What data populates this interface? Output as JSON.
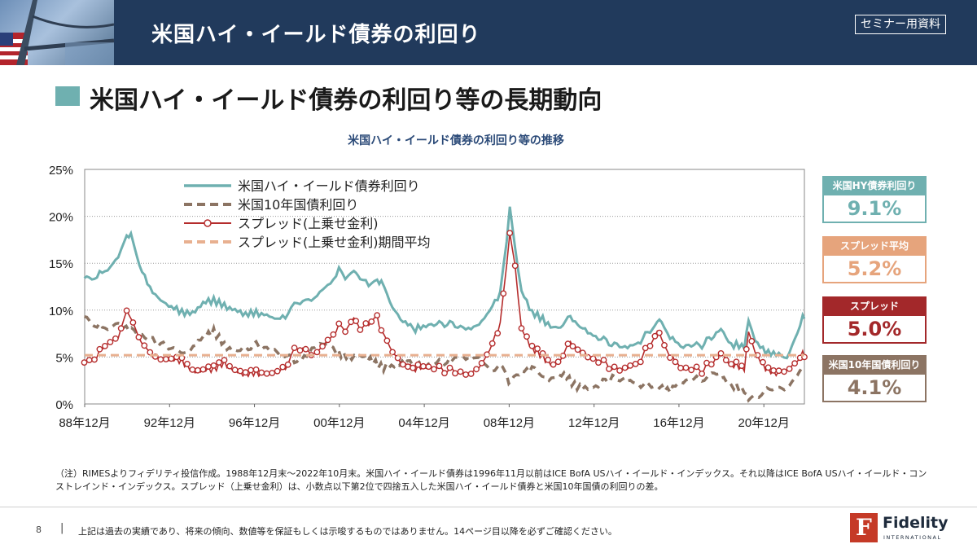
{
  "header": {
    "title": "米国ハイ・イールド債券の利回り",
    "badge": "セミナー用資料"
  },
  "section": {
    "title": "米国ハイ・イールド債券の利回り等の長期動向"
  },
  "chart_data": {
    "type": "line",
    "title": "米国ハイ・イールド債券の利回り等の推移",
    "x_range": [
      "1988-12",
      "2022-10"
    ],
    "x_tick_labels": [
      "88年12月",
      "92年12月",
      "96年12月",
      "00年12月",
      "04年12月",
      "08年12月",
      "12年12月",
      "16年12月",
      "20年12月"
    ],
    "x_tick_years": [
      1988.92,
      1992.92,
      1996.92,
      2000.92,
      2004.92,
      2008.92,
      2012.92,
      2016.92,
      2020.92
    ],
    "y_tick_labels": [
      "0%",
      "5%",
      "10%",
      "15%",
      "20%",
      "25%"
    ],
    "ylim": [
      0,
      25
    ],
    "grid": "horizontal dotted",
    "legend_placement": "top-left",
    "series": [
      {
        "name": "米国ハイ・イールド債券利回り",
        "color": "#6fb0b0",
        "style": "solid",
        "x": [
          1988.9,
          1989.5,
          1990.0,
          1990.5,
          1990.9,
          1991.1,
          1991.5,
          1992.0,
          1992.5,
          1993.0,
          1993.5,
          1994.0,
          1994.5,
          1995.0,
          1995.5,
          1996.0,
          1996.5,
          1997.0,
          1997.5,
          1998.0,
          1998.5,
          1998.8,
          1999.2,
          1999.6,
          2000.0,
          2000.5,
          2000.9,
          2001.2,
          2001.6,
          2001.9,
          2002.3,
          2002.7,
          2002.9,
          2003.3,
          2003.8,
          2004.5,
          2005.0,
          2006.0,
          2007.0,
          2007.5,
          2008.0,
          2008.5,
          2008.8,
          2008.95,
          2009.2,
          2009.5,
          2010.0,
          2010.5,
          2011.0,
          2011.8,
          2012.5,
          2013.0,
          2014.0,
          2014.5,
          2015.0,
          2015.9,
          2016.1,
          2016.5,
          2017.0,
          2018.0,
          2018.9,
          2019.5,
          2020.0,
          2020.2,
          2020.5,
          2021.0,
          2021.5,
          2022.0,
          2022.5,
          2022.75,
          2022.83
        ],
        "y": [
          13.3,
          13.8,
          14.3,
          15.6,
          17.9,
          17.9,
          14.8,
          12.3,
          11.0,
          10.4,
          9.8,
          9.6,
          10.8,
          11.1,
          10.4,
          10.0,
          9.6,
          9.7,
          9.4,
          9.1,
          9.4,
          11.0,
          10.6,
          11.0,
          12.0,
          12.8,
          14.2,
          13.2,
          14.0,
          13.2,
          12.8,
          13.2,
          12.8,
          10.8,
          9.0,
          8.0,
          8.4,
          8.6,
          8.0,
          8.4,
          10.0,
          11.8,
          17.0,
          21.0,
          16.6,
          12.0,
          9.8,
          9.0,
          8.0,
          9.2,
          7.8,
          7.2,
          6.2,
          6.0,
          6.6,
          8.5,
          8.8,
          7.2,
          6.2,
          6.3,
          7.9,
          6.3,
          6.2,
          9.2,
          6.8,
          5.5,
          5.4,
          4.9,
          7.5,
          9.4,
          9.1
        ]
      },
      {
        "name": "米国10年国債利回り",
        "color": "#8c7463",
        "style": "dashed",
        "x": [
          1988.9,
          1989.5,
          1990.0,
          1990.5,
          1991.0,
          1992.0,
          1993.0,
          1993.8,
          1994.5,
          1995.0,
          1995.5,
          1996.0,
          1997.0,
          1998.0,
          1998.8,
          1999.5,
          2000.0,
          2000.5,
          2001.0,
          2001.5,
          2002.0,
          2002.5,
          2003.0,
          2003.5,
          2004.0,
          2005.0,
          2006.0,
          2006.5,
          2007.0,
          2007.5,
          2008.0,
          2008.6,
          2008.9,
          2009.5,
          2010.0,
          2010.8,
          2011.5,
          2012.0,
          2012.5,
          2013.0,
          2013.9,
          2014.5,
          2015.0,
          2016.0,
          2016.5,
          2017.0,
          2018.0,
          2018.8,
          2019.5,
          2020.0,
          2020.2,
          2020.8,
          2021.2,
          2022.0,
          2022.5,
          2022.83
        ],
        "y": [
          9.2,
          8.5,
          8.0,
          8.6,
          8.0,
          6.9,
          5.9,
          5.3,
          7.1,
          7.8,
          6.2,
          5.6,
          6.3,
          5.5,
          4.6,
          5.6,
          6.5,
          6.2,
          5.2,
          5.0,
          5.1,
          4.5,
          3.9,
          4.1,
          4.4,
          4.2,
          4.6,
          5.1,
          4.8,
          4.9,
          3.8,
          4.0,
          2.5,
          3.4,
          3.8,
          2.5,
          3.2,
          2.0,
          1.6,
          1.9,
          3.0,
          2.5,
          2.2,
          1.8,
          1.5,
          2.4,
          2.8,
          3.2,
          1.9,
          1.5,
          0.7,
          0.9,
          1.7,
          1.7,
          3.0,
          4.1
        ]
      },
      {
        "name": "スプレッド(上乗せ金利)",
        "color": "#b52c2c",
        "style": "solid-markers",
        "x": [
          1988.9,
          1989.5,
          1990.0,
          1990.5,
          1990.9,
          1991.2,
          1991.6,
          1992.0,
          1992.5,
          1993.0,
          1993.5,
          1994.0,
          1994.5,
          1995.0,
          1995.5,
          1996.0,
          1996.5,
          1997.0,
          1997.5,
          1998.0,
          1998.5,
          1998.8,
          1999.2,
          1999.6,
          2000.0,
          2000.5,
          2000.9,
          2001.2,
          2001.6,
          2001.9,
          2002.3,
          2002.7,
          2002.9,
          2003.3,
          2003.8,
          2004.5,
          2005.0,
          2006.0,
          2007.0,
          2007.5,
          2008.0,
          2008.5,
          2008.8,
          2008.95,
          2009.2,
          2009.5,
          2010.0,
          2010.5,
          2011.0,
          2011.8,
          2012.5,
          2013.0,
          2014.0,
          2014.5,
          2015.0,
          2015.9,
          2016.1,
          2016.5,
          2017.0,
          2018.0,
          2018.9,
          2019.5,
          2020.0,
          2020.2,
          2020.5,
          2021.0,
          2021.5,
          2022.0,
          2022.5,
          2022.75,
          2022.83
        ],
        "y": [
          4.3,
          5.3,
          6.5,
          7.0,
          9.9,
          9.0,
          6.3,
          5.3,
          4.7,
          4.8,
          4.6,
          3.4,
          3.6,
          3.8,
          4.3,
          3.5,
          3.2,
          3.3,
          3.1,
          3.5,
          4.0,
          6.2,
          5.6,
          5.2,
          5.9,
          7.0,
          8.2,
          7.6,
          9.0,
          7.8,
          8.6,
          9.4,
          7.5,
          6.0,
          4.4,
          3.8,
          4.0,
          3.6,
          3.2,
          3.8,
          5.8,
          8.5,
          14.5,
          18.2,
          14.7,
          8.0,
          6.0,
          5.0,
          4.0,
          6.5,
          5.2,
          4.8,
          3.6,
          3.8,
          4.5,
          7.5,
          7.0,
          5.2,
          3.9,
          3.6,
          5.3,
          4.2,
          3.8,
          8.0,
          5.6,
          3.7,
          3.3,
          3.6,
          4.5,
          5.6,
          5.0
        ]
      },
      {
        "name": "スプレッド(上乗せ金利)期間平均",
        "color": "#e8b090",
        "style": "dashed",
        "value": 5.2
      }
    ]
  },
  "side_boxes": [
    {
      "label": "米国HY債券利回り",
      "value": "9.1%",
      "color": "#6fb0b0"
    },
    {
      "label": "スプレッド平均",
      "value": "5.2%",
      "color": "#e6a47c"
    },
    {
      "label": "スプレッド",
      "value": "5.0%",
      "color": "#a3282a"
    },
    {
      "label": "米国10年国債利回り",
      "value": "4.1%",
      "color": "#8c7463"
    }
  ],
  "note": "（注）RIMESよりフィデリティ投信作成。1988年12月末～2022年10月末。米国ハイ・イールド債券は1996年11月以前はICE BofA USハイ・イールド・インデックス。それ以降はICE BofA USハイ・イールド・コンストレインド・インデックス。スプレッド（上乗せ金利）は、小数点以下第2位で四捨五入した米国ハイ・イールド債券と米国10年国債の利回りの差。",
  "footer": {
    "page_number": "8",
    "separator": "|",
    "disclaimer": "上記は過去の実績であり、将来の傾向、数値等を保証もしくは示唆するものではありません。14ページ目以降を必ずご確認ください。",
    "logo_icon": "fidelity-f-icon",
    "logo_text": "Fidelity",
    "logo_subtext": "INTERNATIONAL"
  }
}
